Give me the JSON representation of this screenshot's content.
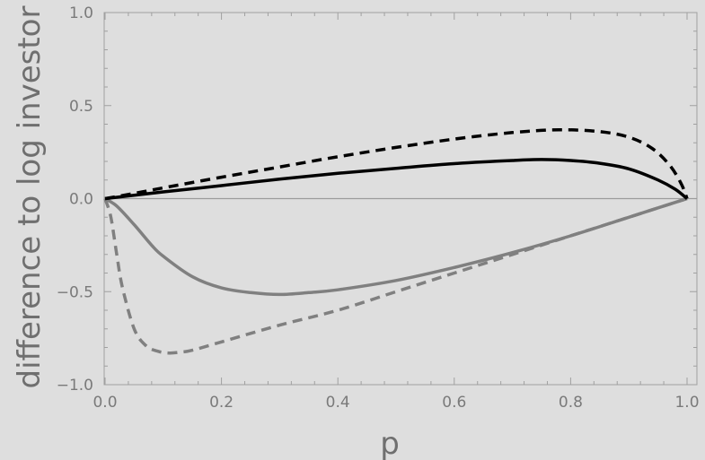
{
  "chart_data": {
    "type": "line",
    "title": "",
    "xlabel": "p",
    "ylabel": "difference to log investor",
    "xlim": [
      0,
      1
    ],
    "ylim": [
      -1,
      1
    ],
    "x_ticks": [
      "0.0",
      "0.2",
      "0.4",
      "0.6",
      "0.8",
      "1.0"
    ],
    "y_ticks": [
      "-1.0",
      "-0.5",
      "0.0",
      "0.5",
      "1.0"
    ],
    "reference_line_y": 0,
    "grid": false,
    "colors": {
      "black": "#000000",
      "gray": "#808080",
      "zero_line": "#9a9a9a",
      "frame": "#a0a0a0"
    },
    "series": [
      {
        "color": "#000000",
        "dashed": false,
        "x": [
          0,
          0.05,
          0.1,
          0.2,
          0.3,
          0.4,
          0.5,
          0.6,
          0.7,
          0.75,
          0.8,
          0.85,
          0.9,
          0.95,
          0.98,
          1.0
        ],
        "y": [
          0,
          0.018,
          0.036,
          0.07,
          0.105,
          0.136,
          0.163,
          0.188,
          0.205,
          0.21,
          0.205,
          0.19,
          0.16,
          0.1,
          0.05,
          0
        ]
      },
      {
        "color": "#000000",
        "dashed": true,
        "x": [
          0,
          0.05,
          0.1,
          0.2,
          0.3,
          0.4,
          0.5,
          0.6,
          0.7,
          0.78,
          0.85,
          0.9,
          0.94,
          0.97,
          0.99,
          1.0
        ],
        "y": [
          0,
          0.028,
          0.058,
          0.115,
          0.17,
          0.225,
          0.275,
          0.32,
          0.355,
          0.37,
          0.36,
          0.33,
          0.27,
          0.18,
          0.08,
          0
        ]
      },
      {
        "color": "#808080",
        "dashed": false,
        "x": [
          0,
          0.02,
          0.05,
          0.08,
          0.1,
          0.15,
          0.2,
          0.25,
          0.3,
          0.35,
          0.4,
          0.5,
          0.6,
          0.7,
          0.8,
          0.9,
          1.0
        ],
        "y": [
          0,
          -0.04,
          -0.14,
          -0.25,
          -0.31,
          -0.42,
          -0.48,
          -0.505,
          -0.515,
          -0.505,
          -0.49,
          -0.44,
          -0.37,
          -0.29,
          -0.2,
          -0.1,
          0
        ]
      },
      {
        "color": "#808080",
        "dashed": true,
        "x": [
          0,
          0.01,
          0.02,
          0.03,
          0.05,
          0.07,
          0.09,
          0.11,
          0.13,
          0.15,
          0.2,
          0.3,
          0.4,
          0.5,
          0.6,
          0.7,
          0.8,
          0.9,
          1.0
        ],
        "y": [
          0,
          -0.1,
          -0.3,
          -0.48,
          -0.7,
          -0.79,
          -0.82,
          -0.83,
          -0.825,
          -0.815,
          -0.77,
          -0.68,
          -0.6,
          -0.5,
          -0.4,
          -0.3,
          -0.2,
          -0.1,
          0
        ]
      }
    ]
  }
}
